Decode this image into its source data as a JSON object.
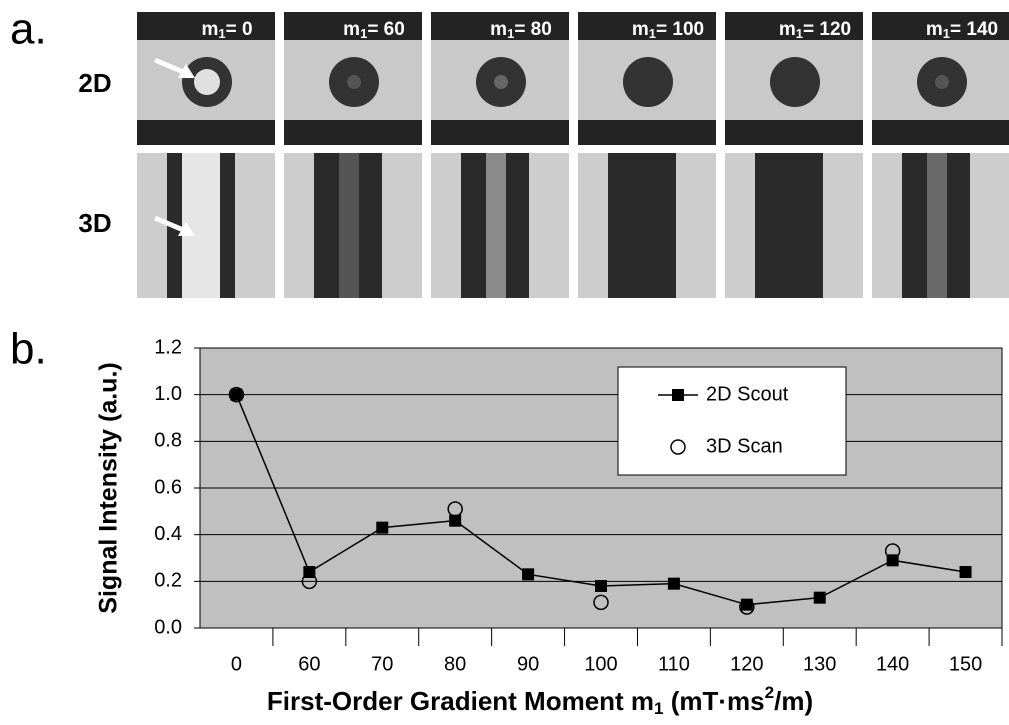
{
  "panel_a": {
    "label": "a.",
    "rows": [
      "2D",
      "3D"
    ],
    "columns": [
      {
        "symbol": "m",
        "subscript": "1",
        "value": "= 0"
      },
      {
        "symbol": "m",
        "subscript": "1",
        "value": "= 60"
      },
      {
        "symbol": "m",
        "subscript": "1",
        "value": "= 80"
      },
      {
        "symbol": "m",
        "subscript": "1",
        "value": "= 100"
      },
      {
        "symbol": "m",
        "subscript": "1",
        "value": "= 120"
      },
      {
        "symbol": "m",
        "subscript": "1",
        "value": "= 140"
      }
    ]
  },
  "chart_data": {
    "type": "line",
    "panel_label": "b.",
    "ylabel": "Signal Intensity (a.u.)",
    "xlabel_parts": [
      {
        "text": "First-Order Gradient Moment m"
      },
      {
        "text": "1",
        "sub": true
      },
      {
        "text": " (mT·ms"
      },
      {
        "text": "2",
        "sup": true
      },
      {
        "text": "/m)"
      }
    ],
    "categories": [
      "0",
      "60",
      "70",
      "80",
      "90",
      "100",
      "110",
      "120",
      "130",
      "140",
      "150"
    ],
    "series": [
      {
        "name": "2D Scout",
        "color": "#000000",
        "marker": "square",
        "line": true,
        "values": [
          1.0,
          0.24,
          0.43,
          0.46,
          0.23,
          0.18,
          0.19,
          0.1,
          0.13,
          0.29,
          0.24
        ]
      },
      {
        "name": "3D Scan",
        "color": "#000000",
        "marker": "circle",
        "line": false,
        "values": [
          1.0,
          0.2,
          null,
          0.51,
          null,
          0.11,
          null,
          0.09,
          null,
          0.33,
          null
        ]
      }
    ],
    "ylim": [
      0,
      1.2
    ],
    "yticks": [
      {
        "value": 0,
        "label": "0.0"
      },
      0.2,
      0.4,
      0.6,
      0.8,
      {
        "value": 1,
        "label": "1.0"
      },
      1.2
    ],
    "grid": true,
    "background": "#c0c0c0",
    "legend": "top right"
  }
}
